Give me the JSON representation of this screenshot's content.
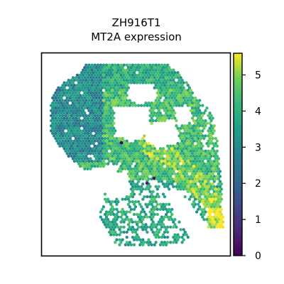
{
  "chart_data": {
    "type": "scatter",
    "title": "ZH916T1",
    "subtitle": "MT2A expression",
    "xlabel": "",
    "ylabel": "",
    "colormap": "viridis",
    "colorbar": {
      "range": [
        0,
        5.6
      ],
      "ticks": [
        0,
        1,
        2,
        3,
        4,
        5
      ],
      "tick_labels": [
        "0",
        "1",
        "2",
        "3",
        "4",
        "5"
      ]
    },
    "axes_ticks_shown": false,
    "grid": false,
    "regions": [
      {
        "name": "upper-left-lobe",
        "typical_value": 3.0
      },
      {
        "name": "top-band",
        "typical_value": 3.9
      },
      {
        "name": "center-right",
        "typical_value": 4.3
      },
      {
        "name": "diagonal-ridge",
        "typical_value": 4.8
      },
      {
        "name": "lower-scattered",
        "typical_value": 3.8
      },
      {
        "name": "right-edge-hotspot",
        "typical_value": 5.3
      }
    ],
    "outlier_spots": [
      {
        "label": "low-expression-spot-1",
        "value": 0.1
      },
      {
        "label": "low-expression-spot-2",
        "value": 0.3
      },
      {
        "label": "low-expression-spot-3",
        "value": 0.5
      }
    ]
  }
}
